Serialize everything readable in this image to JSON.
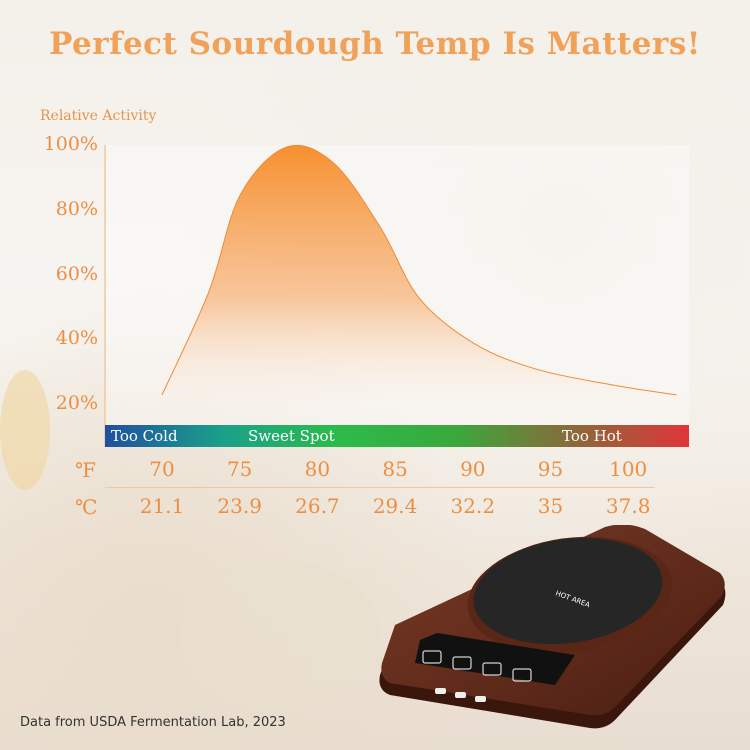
{
  "title": "Perfect Sourdough Temp Is Matters!",
  "source": "Data from USDA Fermentation Lab, 2023",
  "device": {
    "label": "HOT AREA"
  },
  "colors": {
    "accent": "#ec8f44",
    "curve": "#f7902f",
    "too_cold": "#1f4fa0",
    "sweet_spot": "#2cbb4a",
    "too_hot": "#e0353a"
  },
  "chart_data": {
    "type": "area",
    "ylabel": "Relative Activity",
    "yticks": [
      "100%",
      "80%",
      "60%",
      "40%",
      "20%"
    ],
    "ylim": [
      0,
      100
    ],
    "xlim": [
      70,
      103
    ],
    "x_f": [
      70,
      73,
      75,
      78,
      81,
      84,
      86.5,
      90,
      94,
      99,
      103
    ],
    "y": [
      23,
      55,
      85,
      100,
      95,
      75,
      53,
      39,
      31,
      26,
      23
    ],
    "zones": [
      {
        "label": "Too Cold"
      },
      {
        "label": "Sweet Spot"
      },
      {
        "label": "Too Hot"
      }
    ],
    "fahrenheit_unit": "℉",
    "celsius_unit": "℃",
    "fahrenheit": [
      "70",
      "75",
      "80",
      "85",
      "90",
      "95",
      "100"
    ],
    "celsius": [
      "21.1",
      "23.9",
      "26.7",
      "29.4",
      "32.2",
      "35",
      "37.8"
    ],
    "grid": false
  }
}
